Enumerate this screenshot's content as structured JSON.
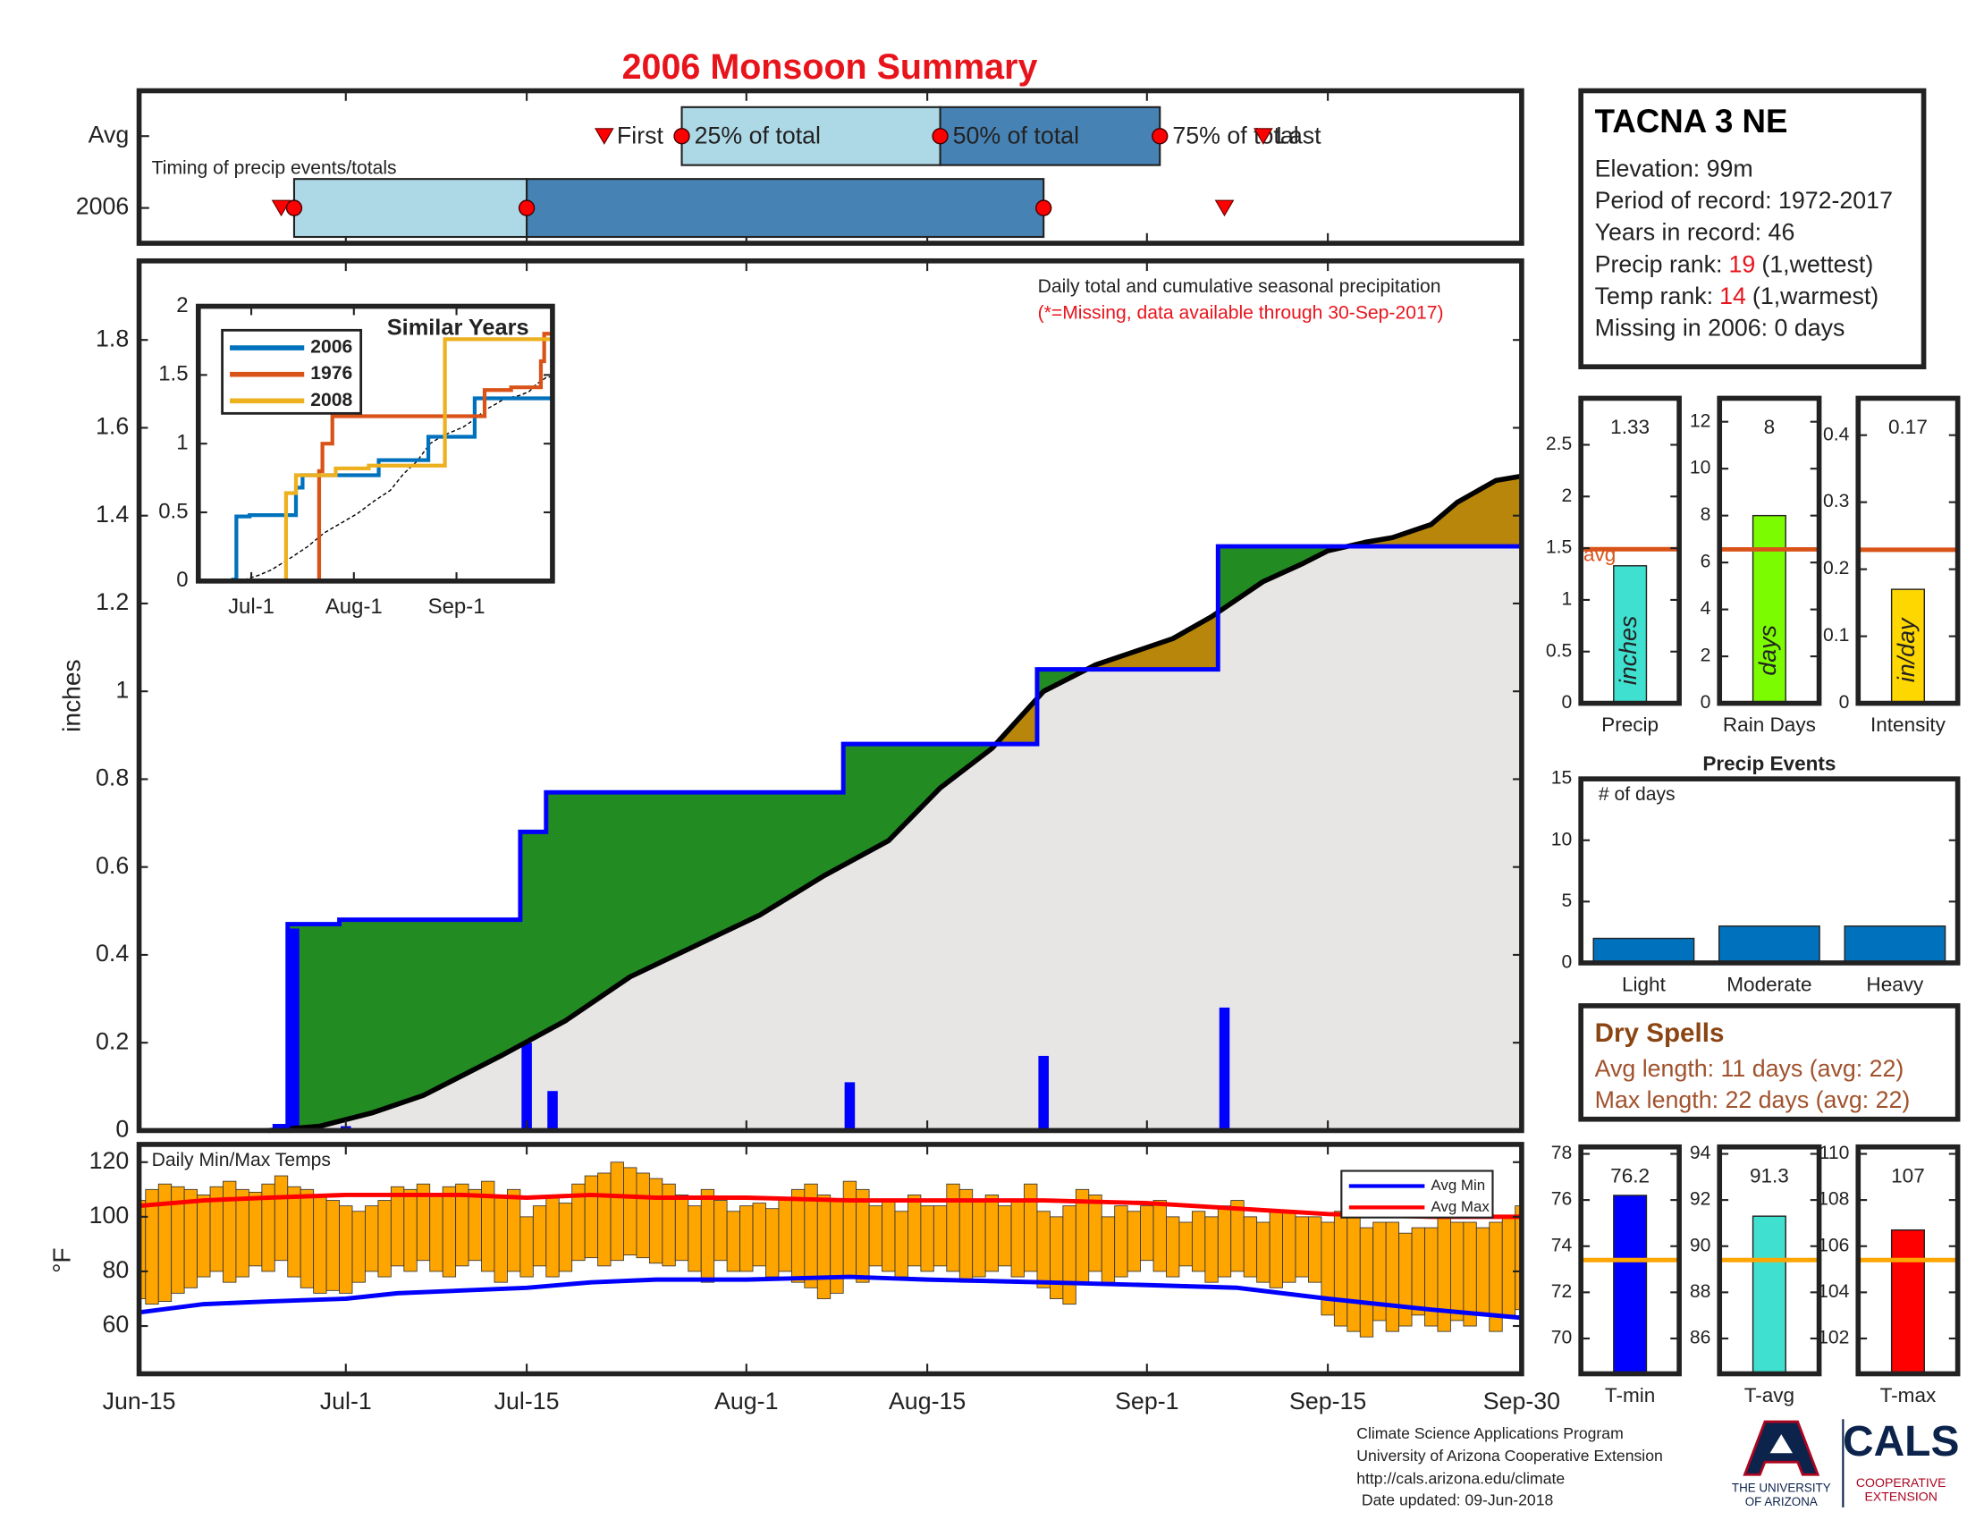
{
  "title": "2006 Monsoon Summary",
  "station": {
    "name": "TACNA 3 NE",
    "lines": [
      "Elevation: 99m",
      "Period of record: 1972-2017",
      "Years in record: 46",
      {
        "label": "Precip rank:",
        "rank": "19",
        "note": "(1,wettest)"
      },
      {
        "label": "Temp rank:",
        "rank": "14",
        "note": "(1,warmest)"
      },
      "Missing in 2006: 0 days"
    ]
  },
  "dry_spells": {
    "title": "Dry Spells",
    "lines": [
      "Avg length: 11 days (avg: 22)",
      "Max length: 22 days (avg: 22)"
    ]
  },
  "footer": {
    "lines": [
      "Climate Science Applications Program",
      "University of Arizona Cooperative Extension",
      "http://cals.arizona.edu/climate",
      "Date updated: 09-Jun-2018"
    ],
    "logo_left": [
      "THE UNIVERSITY",
      "OF ARIZONA"
    ],
    "logo_right": "CALS",
    "logo_right_sub": [
      "COOPERATIVE",
      "EXTENSION"
    ]
  },
  "chart_data": [
    {
      "type": "timing",
      "title": "Timing of precip events/totals",
      "xlim": [
        0,
        107
      ],
      "labels": [
        "First",
        "25% of total",
        "50% of total",
        "75% of total",
        "Last"
      ],
      "light_color": "#add8e6",
      "dark_color": "#4682b4",
      "marker_color": "#ff0000",
      "series": [
        {
          "name": "Avg",
          "values": [
            36,
            42,
            62,
            79,
            87
          ]
        },
        {
          "name": "2006",
          "values": [
            11,
            12,
            30,
            70,
            84
          ]
        }
      ]
    },
    {
      "type": "cumulative",
      "title": "Daily total and cumulative seasonal precipitation",
      "subtitle": "(*=Missing, data available through 30-Sep-2017)",
      "ylabel": "inches",
      "xlim": [
        0,
        107
      ],
      "ylim": [
        0,
        1.98
      ],
      "yticks": [
        0,
        0.2,
        0.4,
        0.6,
        0.8,
        1,
        1.2,
        1.4,
        1.6,
        1.8
      ],
      "above_color": "#228b22",
      "below_color": "#b8860b",
      "base_color": "#e8e6e4",
      "daily": {
        "color": "#0000ff",
        "x": [
          11,
          12,
          16,
          30,
          32,
          55,
          70,
          84
        ],
        "values": [
          0.01,
          0.46,
          0.01,
          0.2,
          0.09,
          0.11,
          0.17,
          0.28
        ]
      },
      "cumulative": {
        "color": "#0000ff",
        "x": [
          0,
          11,
          12,
          16,
          30,
          32,
          55,
          70,
          84
        ],
        "values": [
          0,
          0.01,
          0.47,
          0.48,
          0.68,
          0.77,
          0.88,
          1.05,
          1.33
        ]
      },
      "average": {
        "color": "#000000",
        "x": [
          10,
          14,
          18,
          22,
          28,
          33,
          38,
          43,
          48,
          53,
          58,
          62,
          66,
          70,
          74,
          77,
          80,
          83,
          85,
          87,
          90,
          92,
          95,
          97,
          100,
          102,
          105,
          107
        ],
        "values": [
          0,
          0.01,
          0.04,
          0.08,
          0.17,
          0.25,
          0.35,
          0.42,
          0.49,
          0.58,
          0.66,
          0.78,
          0.87,
          1.0,
          1.06,
          1.09,
          1.12,
          1.17,
          1.21,
          1.25,
          1.29,
          1.32,
          1.34,
          1.35,
          1.38,
          1.43,
          1.48,
          1.49
        ]
      }
    },
    {
      "type": "inset",
      "title": "Similar Years",
      "xlim": [
        0,
        107
      ],
      "ylim": [
        0,
        2
      ],
      "yticks": [
        0,
        0.5,
        1,
        1.5,
        2
      ],
      "xticks": [
        {
          "value": 16,
          "label": "Jul-1"
        },
        {
          "value": 47,
          "label": "Aug-1"
        },
        {
          "value": 78,
          "label": "Sep-1"
        }
      ],
      "series": [
        {
          "name": "2006",
          "color": "#0072bd",
          "x": [
            0,
            11,
            12,
            16,
            30,
            32,
            55,
            70,
            84
          ],
          "values": [
            0,
            0.01,
            0.47,
            0.48,
            0.68,
            0.77,
            0.88,
            1.05,
            1.33
          ]
        },
        {
          "name": "1976",
          "color": "#d95319",
          "x": [
            0,
            37,
            38,
            41,
            87,
            95,
            104,
            105
          ],
          "values": [
            0,
            0.8,
            1.0,
            1.2,
            1.39,
            1.41,
            1.6,
            1.8
          ]
        },
        {
          "name": "2008",
          "color": "#edb120",
          "x": [
            0,
            27,
            30,
            42,
            52,
            75
          ],
          "values": [
            0,
            0.64,
            0.77,
            0.82,
            0.84,
            1.76
          ]
        }
      ]
    },
    {
      "type": "range_bar",
      "title": "Daily Min/Max Temps",
      "ylabel": "°F",
      "xlim": [
        0,
        107
      ],
      "ylim": [
        42.5,
        126.5
      ],
      "yticks": [
        60,
        80,
        100,
        120
      ],
      "xticks": [
        {
          "value": 0,
          "label": "Jun-15"
        },
        {
          "value": 16,
          "label": "Jul-1"
        },
        {
          "value": 30,
          "label": "Jul-15"
        },
        {
          "value": 47,
          "label": "Aug-1"
        },
        {
          "value": 61,
          "label": "Aug-15"
        },
        {
          "value": 78,
          "label": "Sep-1"
        },
        {
          "value": 92,
          "label": "Sep-15"
        },
        {
          "value": 107,
          "label": "Sep-30"
        }
      ],
      "color": "#ffa500",
      "x": [
        0,
        1,
        2,
        3,
        4,
        5,
        6,
        7,
        8,
        9,
        10,
        11,
        12,
        13,
        14,
        15,
        16,
        17,
        18,
        19,
        20,
        21,
        22,
        23,
        24,
        25,
        26,
        27,
        28,
        29,
        30,
        31,
        32,
        33,
        34,
        35,
        36,
        37,
        38,
        39,
        40,
        41,
        42,
        43,
        44,
        45,
        46,
        47,
        48,
        49,
        50,
        51,
        52,
        53,
        54,
        55,
        56,
        57,
        58,
        59,
        60,
        61,
        62,
        63,
        64,
        65,
        66,
        67,
        68,
        69,
        70,
        71,
        72,
        73,
        74,
        75,
        76,
        77,
        78,
        79,
        80,
        81,
        82,
        83,
        84,
        85,
        86,
        87,
        88,
        89,
        90,
        91,
        92,
        93,
        94,
        95,
        96,
        97,
        98,
        99,
        100,
        101,
        102,
        103,
        104,
        105,
        106,
        107
      ],
      "max": [
        106,
        110,
        112,
        111,
        110,
        108,
        111,
        113,
        110,
        109,
        112,
        115,
        111,
        110,
        108,
        106,
        104,
        102,
        104,
        106,
        111,
        110,
        112,
        108,
        111,
        112,
        110,
        113,
        108,
        110,
        100,
        104,
        108,
        105,
        112,
        115,
        116,
        120,
        118,
        116,
        114,
        112,
        108,
        104,
        110,
        106,
        102,
        104,
        105,
        103,
        107,
        110,
        112,
        108,
        106,
        113,
        110,
        104,
        106,
        102,
        108,
        104,
        104,
        112,
        110,
        106,
        108,
        104,
        106,
        112,
        102,
        100,
        104,
        110,
        108,
        100,
        104,
        102,
        104,
        106,
        100,
        98,
        102,
        100,
        104,
        106,
        100,
        98,
        102,
        102,
        100,
        100,
        98,
        102,
        100,
        96,
        98,
        98,
        94,
        96,
        96,
        100,
        98,
        98,
        96,
        98,
        100,
        104
      ],
      "min": [
        70,
        68,
        69,
        72,
        74,
        78,
        80,
        76,
        78,
        82,
        80,
        84,
        78,
        74,
        72,
        73,
        72,
        76,
        80,
        78,
        82,
        80,
        84,
        80,
        78,
        82,
        84,
        80,
        76,
        80,
        78,
        82,
        78,
        80,
        84,
        85,
        82,
        84,
        86,
        85,
        83,
        82,
        84,
        80,
        76,
        84,
        80,
        80,
        82,
        78,
        80,
        76,
        74,
        70,
        72,
        78,
        76,
        82,
        80,
        78,
        82,
        80,
        82,
        80,
        76,
        78,
        80,
        82,
        78,
        80,
        74,
        70,
        68,
        76,
        80,
        76,
        78,
        80,
        84,
        80,
        78,
        82,
        80,
        76,
        78,
        80,
        78,
        76,
        74,
        76,
        78,
        76,
        64,
        60,
        58,
        56,
        62,
        58,
        60,
        64,
        60,
        58,
        62,
        60,
        64,
        58,
        64,
        66
      ],
      "series": [
        {
          "name": "Avg Min",
          "color": "#0000ff",
          "x": [
            0,
            5,
            10,
            16,
            20,
            25,
            30,
            35,
            40,
            47,
            55,
            61,
            70,
            78,
            85,
            92,
            100,
            107
          ],
          "values": [
            65,
            68,
            69,
            70,
            72,
            73,
            74,
            76,
            77,
            77,
            78,
            77,
            76,
            75,
            74,
            70,
            66,
            63
          ]
        },
        {
          "name": "Avg Max",
          "color": "#ff0000",
          "x": [
            0,
            5,
            10,
            16,
            20,
            25,
            30,
            35,
            40,
            47,
            55,
            61,
            70,
            78,
            85,
            92,
            100,
            107
          ],
          "values": [
            104,
            106,
            107,
            108,
            108,
            108,
            107,
            108,
            107,
            107,
            106,
            106,
            106,
            105,
            103,
            101,
            100,
            100
          ]
        }
      ]
    },
    {
      "type": "bar",
      "categories": [
        "Precip"
      ],
      "values": [
        1.33
      ],
      "unit": "inches",
      "color": "#40e0d0",
      "average": 1.49,
      "average_label": "avg",
      "average_color": "#d95319",
      "ylim": [
        0,
        2.95
      ],
      "yticks": [
        0,
        0.5,
        1,
        1.5,
        2,
        2.5
      ]
    },
    {
      "type": "bar",
      "categories": [
        "Rain Days"
      ],
      "values": [
        8
      ],
      "unit": "days",
      "color": "#7cfc00",
      "average": 6.56,
      "average_color": "#d95319",
      "ylim": [
        0,
        13
      ],
      "yticks": [
        0,
        2,
        4,
        6,
        8,
        10,
        12
      ]
    },
    {
      "type": "bar",
      "categories": [
        "Intensity"
      ],
      "values": [
        0.17
      ],
      "unit": "in/day",
      "color": "#ffd700",
      "average": 0.229,
      "average_color": "#d95319",
      "ylim": [
        0,
        0.455
      ],
      "yticks": [
        0,
        0.1,
        0.2,
        0.3,
        0.4
      ]
    },
    {
      "type": "bar",
      "title": "Precip Events",
      "ylabel": "# of days",
      "categories": [
        "Light",
        "Moderate",
        "Heavy"
      ],
      "values": [
        2,
        3,
        3
      ],
      "color": "#0072bd",
      "ylim": [
        0,
        15
      ],
      "yticks": [
        0,
        5,
        10,
        15
      ]
    },
    {
      "type": "bar",
      "categories": [
        "T-min"
      ],
      "values": [
        76.2
      ],
      "color": "#0000ff",
      "average": 73.4,
      "average_color": "#ffa500",
      "ylim": [
        68.47,
        78.3
      ],
      "yticks": [
        70,
        72,
        74,
        76,
        78
      ]
    },
    {
      "type": "bar",
      "categories": [
        "T-avg"
      ],
      "values": [
        91.3
      ],
      "color": "#40e0d0",
      "average": 89.4,
      "average_color": "#ffa500",
      "ylim": [
        84.47,
        94.3
      ],
      "yticks": [
        86,
        88,
        90,
        92,
        94
      ]
    },
    {
      "type": "bar",
      "categories": [
        "T-max"
      ],
      "values": [
        106.7
      ],
      "value_labels": [
        "107"
      ],
      "color": "#ff0000",
      "average": 105.4,
      "average_color": "#ffa500",
      "ylim": [
        100.47,
        110.3
      ],
      "yticks": [
        102,
        104,
        106,
        108,
        110
      ]
    }
  ]
}
